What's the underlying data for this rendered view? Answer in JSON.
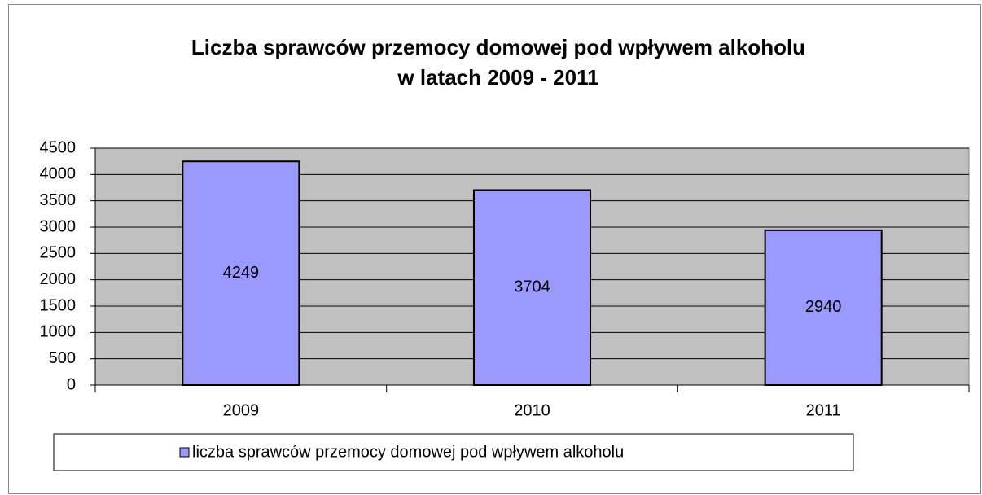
{
  "chart_data": {
    "type": "bar",
    "title": [
      "Liczba sprawców przemocy domowej pod wpływem alkoholu",
      "w latach 2009 - 2011"
    ],
    "categories": [
      "2009",
      "2010",
      "2011"
    ],
    "series": [
      {
        "name": "liczba sprawców przemocy domowej pod wpływem alkoholu",
        "color": "#9999ff",
        "values": [
          4249,
          3704,
          2940
        ]
      }
    ],
    "ylim": [
      0,
      4500
    ],
    "yticks": [
      0,
      500,
      1000,
      1500,
      2000,
      2500,
      3000,
      3500,
      4000,
      4500
    ],
    "grid": true,
    "legend": "bottom",
    "plot_background": "#c0c0c0"
  }
}
